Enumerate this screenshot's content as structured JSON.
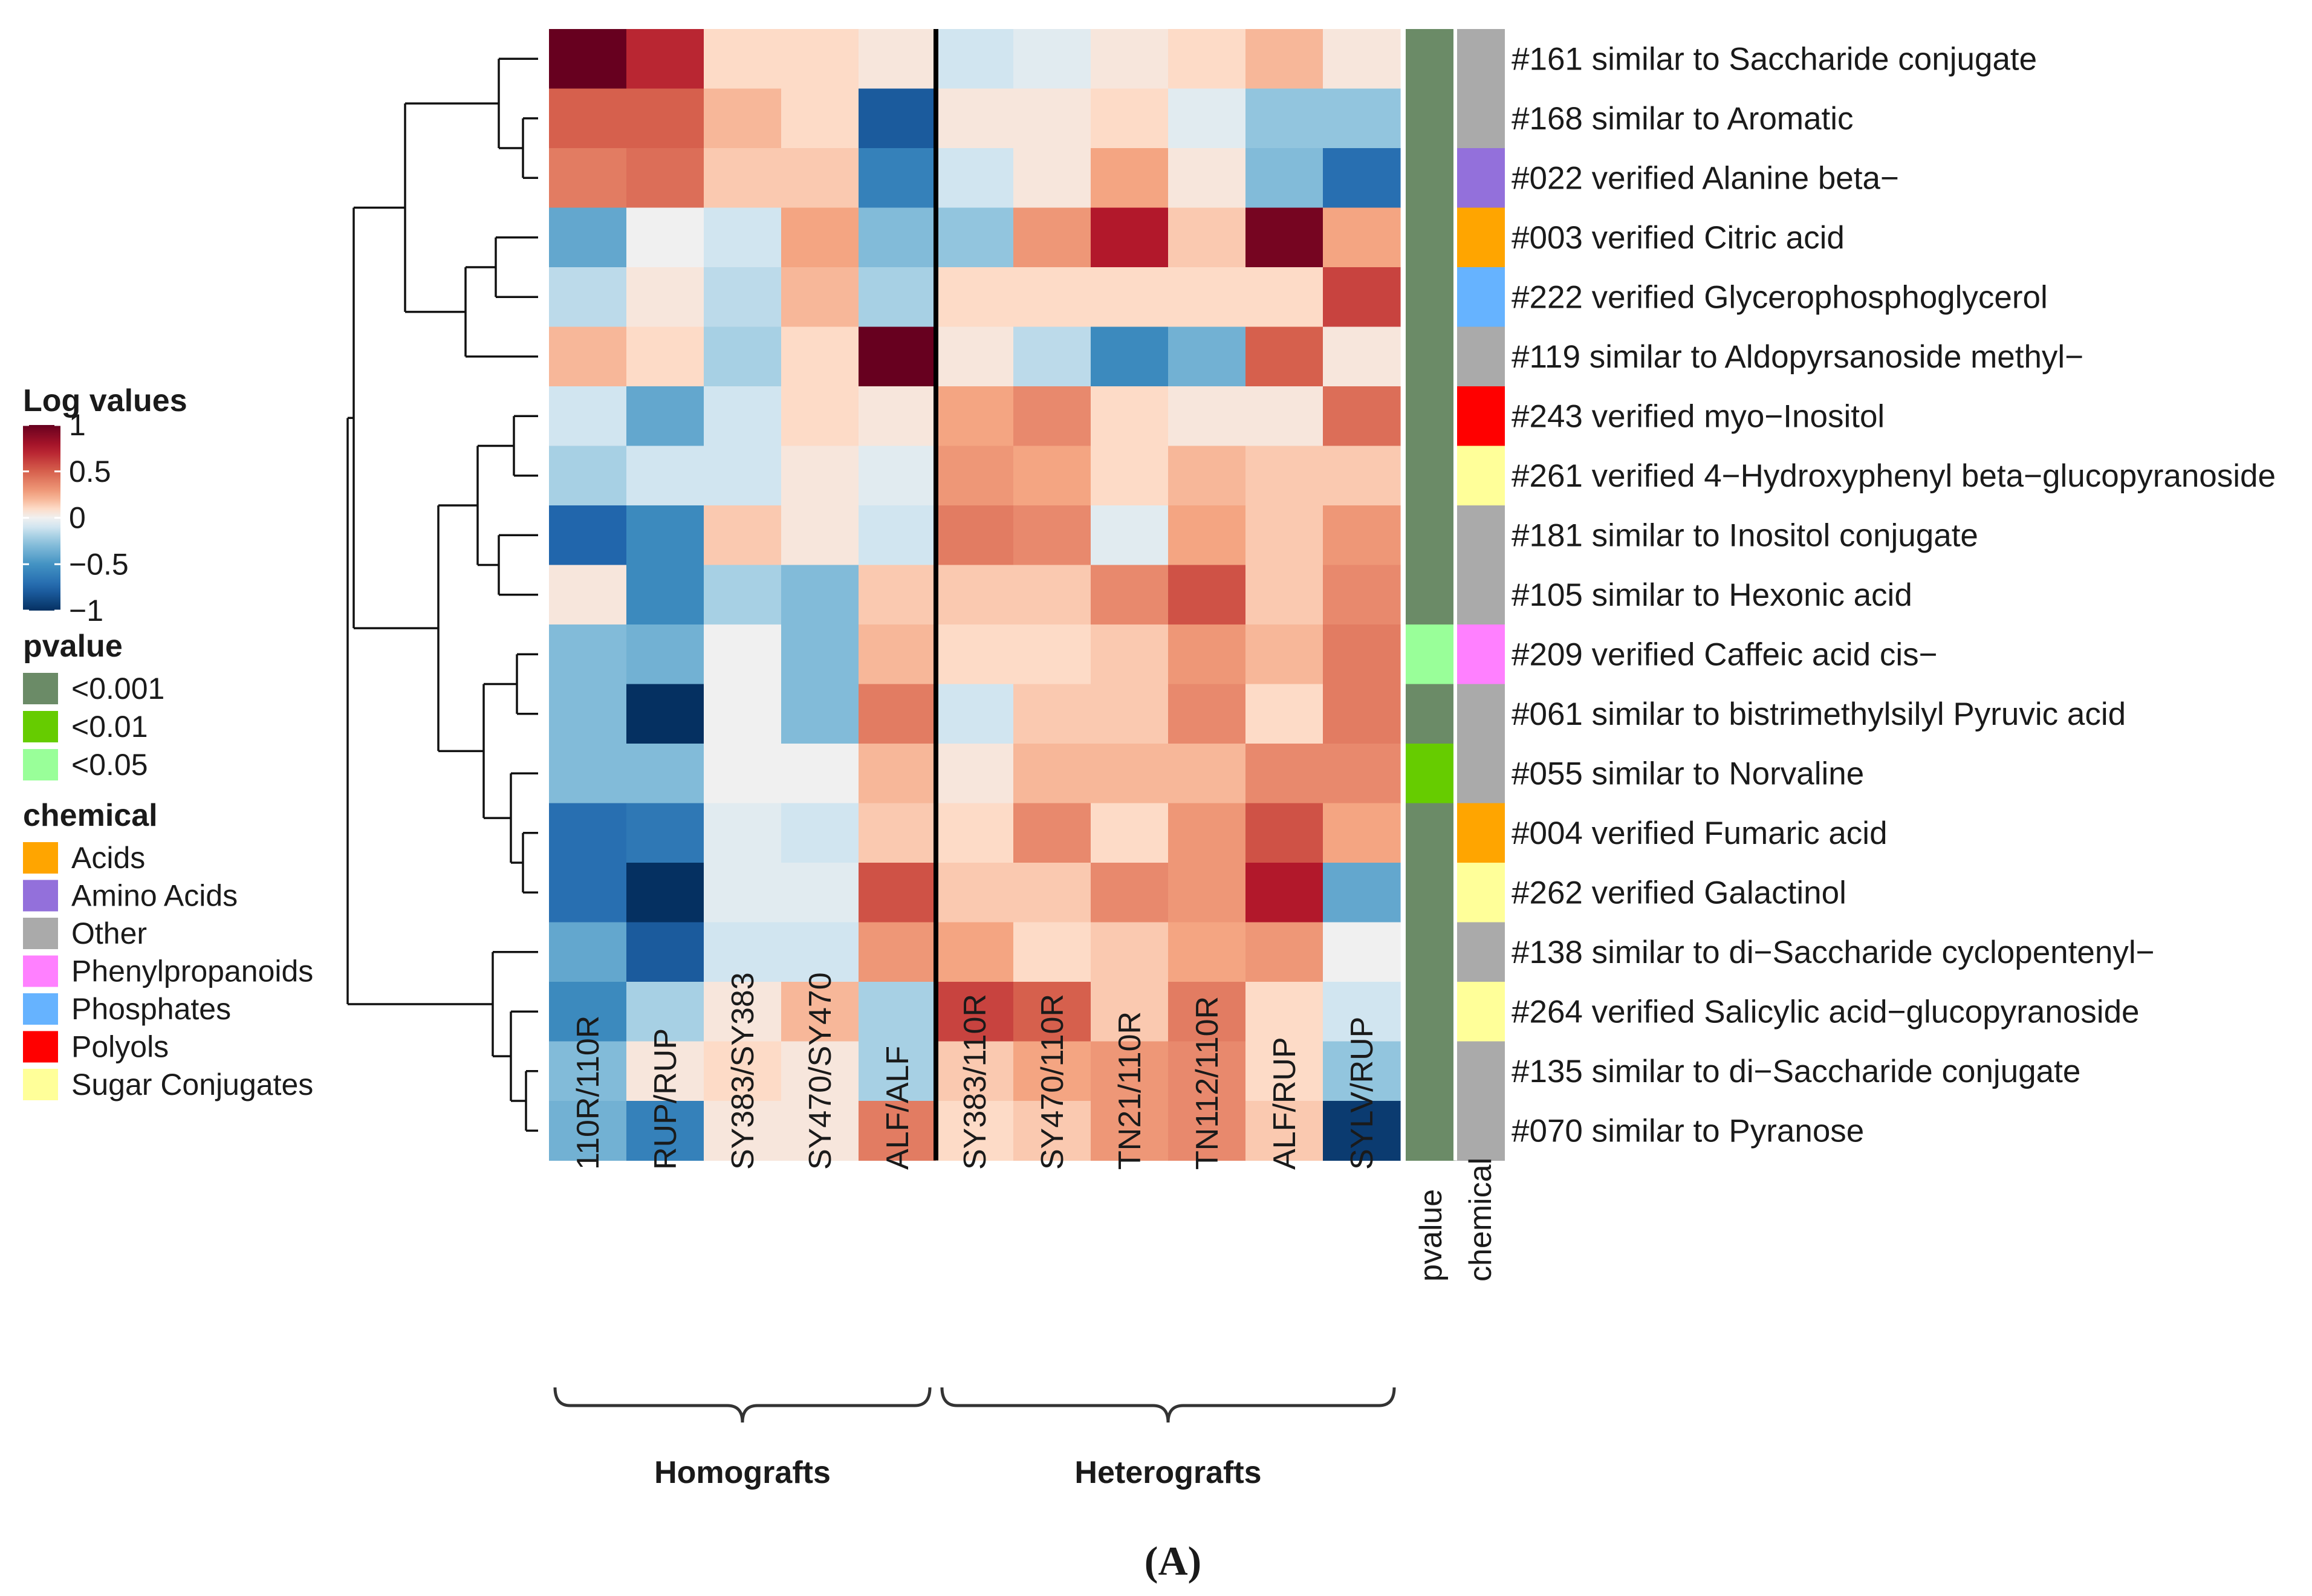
{
  "chart_data": {
    "type": "heatmap",
    "rows": [
      "#161 similar to Saccharide conjugate",
      "#168 similar to Aromatic",
      "#022 verified Alanine beta−",
      "#003 verified Citric acid",
      "#222 verified Glycerophosphoglycerol",
      "#119 similar to Aldopyrsanoside  methyl−",
      "#243 verified myo−Inositol",
      "#261 verified 4−Hydroxyphenyl beta−glucopyranoside",
      "#181 similar to Inositol conjugate",
      "#105 similar to Hexonic acid",
      "#209 verified Caffeic acid  cis−",
      "#061 similar to bistrimethylsilyl Pyruvic acid",
      "#055 similar to Norvaline",
      "#004 verified Fumaric acid",
      "#262 verified Galactinol",
      "#138 similar to di−Saccharide cyclopentenyl−",
      "#264 verified Salicylic acid−glucopyranoside",
      "#135 similar to di−Saccharide conjugate",
      "#070 similar to Pyranose"
    ],
    "columns": [
      "110R/110R",
      "RUP/RUP",
      "SY383/SY383",
      "SY470/SY470",
      "ALF/ALF",
      "SY383/110R",
      "SY470/110R",
      "TN21/110R",
      "TN112/110R",
      "ALF/RUP",
      "SYLV/RUP"
    ],
    "values": [
      [
        1.0,
        0.7,
        0.1,
        0.1,
        0.05,
        -0.1,
        -0.05,
        0.05,
        0.1,
        0.2,
        0.05
      ],
      [
        0.5,
        0.5,
        0.2,
        0.1,
        -0.8,
        0.05,
        0.05,
        0.1,
        -0.05,
        -0.25,
        -0.25
      ],
      [
        0.4,
        0.45,
        0.15,
        0.15,
        -0.6,
        -0.1,
        0.05,
        0.25,
        0.05,
        -0.3,
        -0.7
      ],
      [
        -0.4,
        0.0,
        -0.1,
        0.25,
        -0.3,
        -0.25,
        0.3,
        0.75,
        0.15,
        0.95,
        0.25
      ],
      [
        -0.15,
        0.05,
        -0.15,
        0.2,
        -0.2,
        0.1,
        0.1,
        0.1,
        0.1,
        0.1,
        0.6
      ],
      [
        0.2,
        0.1,
        -0.2,
        0.1,
        1.0,
        0.05,
        -0.15,
        -0.55,
        -0.35,
        0.5,
        0.05
      ],
      [
        -0.1,
        -0.4,
        -0.1,
        0.1,
        0.05,
        0.25,
        0.35,
        0.1,
        0.05,
        0.05,
        0.45
      ],
      [
        -0.2,
        -0.1,
        -0.1,
        0.05,
        -0.05,
        0.3,
        0.25,
        0.1,
        0.2,
        0.15,
        0.15
      ],
      [
        -0.75,
        -0.55,
        0.15,
        0.05,
        -0.1,
        0.4,
        0.35,
        -0.05,
        0.25,
        0.15,
        0.3
      ],
      [
        0.05,
        -0.55,
        -0.2,
        -0.3,
        0.15,
        0.15,
        0.15,
        0.35,
        0.55,
        0.15,
        0.35
      ],
      [
        -0.3,
        -0.35,
        0.0,
        -0.3,
        0.2,
        0.1,
        0.1,
        0.15,
        0.3,
        0.2,
        0.4
      ],
      [
        -0.3,
        -1.0,
        0.0,
        -0.3,
        0.4,
        -0.1,
        0.15,
        0.15,
        0.35,
        0.1,
        0.4
      ],
      [
        -0.3,
        -0.3,
        0.0,
        0.0,
        0.2,
        0.05,
        0.2,
        0.2,
        0.2,
        0.35,
        0.35
      ],
      [
        -0.7,
        -0.65,
        -0.05,
        -0.1,
        0.15,
        0.1,
        0.35,
        0.1,
        0.3,
        0.55,
        0.25
      ],
      [
        -0.7,
        -1.0,
        -0.05,
        -0.05,
        0.55,
        0.15,
        0.15,
        0.35,
        0.3,
        0.75,
        -0.4
      ],
      [
        -0.4,
        -0.8,
        -0.1,
        -0.1,
        0.3,
        0.25,
        0.1,
        0.15,
        0.25,
        0.3,
        0.0
      ],
      [
        -0.55,
        -0.2,
        0.05,
        0.2,
        -0.2,
        0.6,
        0.5,
        0.15,
        0.4,
        0.1,
        -0.1
      ],
      [
        -0.3,
        0.05,
        0.1,
        0.05,
        -0.2,
        0.15,
        0.25,
        0.3,
        0.35,
        0.1,
        -0.25
      ],
      [
        -0.35,
        -0.6,
        0.05,
        0.05,
        0.4,
        0.1,
        0.15,
        0.3,
        0.35,
        0.15,
        -0.95
      ]
    ],
    "pvalue": [
      "<0.001",
      "<0.001",
      "<0.001",
      "<0.001",
      "<0.001",
      "<0.001",
      "<0.001",
      "<0.001",
      "<0.001",
      "<0.001",
      "<0.05",
      "<0.001",
      "<0.01",
      "<0.001",
      "<0.001",
      "<0.001",
      "<0.001",
      "<0.001",
      "<0.001"
    ],
    "chemical": [
      "Other",
      "Other",
      "Amino Acids",
      "Acids",
      "Phosphates",
      "Other",
      "Polyols",
      "Sugar Conjugates",
      "Other",
      "Other",
      "Phenylpropanoids",
      "Other",
      "Other",
      "Acids",
      "Sugar Conjugates",
      "Other",
      "Sugar Conjugates",
      "Other",
      "Other"
    ],
    "annotation_column_labels": [
      "pvalue",
      "chemical"
    ],
    "column_groups": [
      {
        "label": "Homografts",
        "columns": [
          "110R/110R",
          "RUP/RUP",
          "SY383/SY383",
          "SY470/SY470",
          "ALF/ALF"
        ]
      },
      {
        "label": "Heterografts",
        "columns": [
          "SY383/110R",
          "SY470/110R",
          "TN21/110R",
          "TN112/110R",
          "ALF/RUP",
          "SYLV/RUP"
        ]
      }
    ],
    "colorbar": {
      "title": "Log values",
      "range": [
        -1,
        1
      ],
      "ticks": [
        1,
        0.5,
        0,
        -0.5,
        -1
      ],
      "tick_labels": [
        "1",
        "0.5",
        "0",
        "−0.5",
        "−1"
      ]
    },
    "pvalue_legend": {
      "title": "pvalue",
      "entries": [
        {
          "label": "<0.001",
          "color": "#6b8b67"
        },
        {
          "label": "<0.01",
          "color": "#66cc00"
        },
        {
          "label": "<0.05",
          "color": "#99ff99"
        }
      ]
    },
    "chemical_legend": {
      "title": "chemical",
      "entries": [
        {
          "label": "Acids",
          "color": "#ffa500"
        },
        {
          "label": "Amino Acids",
          "color": "#9370db"
        },
        {
          "label": "Other",
          "color": "#aaaaaa"
        },
        {
          "label": "Phenylpropanoids",
          "color": "#ff80ff"
        },
        {
          "label": "Phosphates",
          "color": "#66b3ff"
        },
        {
          "label": "Polyols",
          "color": "#ff0000"
        },
        {
          "label": "Sugar Conjugates",
          "color": "#ffff99"
        }
      ]
    },
    "row_dendrogram": true,
    "panel_label": "(A)"
  }
}
